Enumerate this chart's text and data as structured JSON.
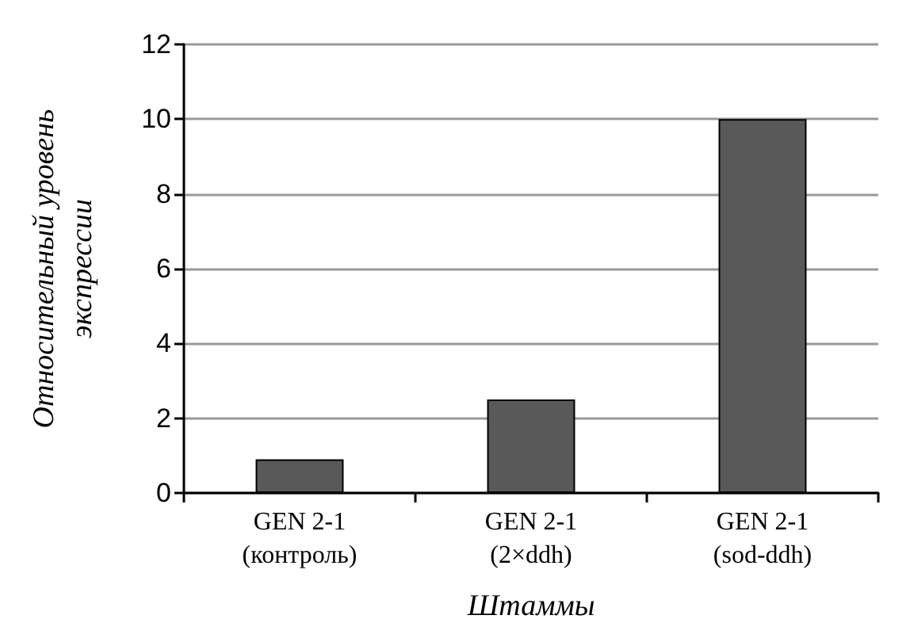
{
  "chart_data": {
    "type": "bar",
    "xlabel": "Штаммы",
    "ylabel": "Относительный уровень\nэкспрессии",
    "categories": [
      "GEN 2-1\n(контроль)",
      "GEN 2-1\n(2×ddh)",
      "GEN 2-1\n(sod-ddh)"
    ],
    "values": [
      0.9,
      2.5,
      10
    ],
    "color": "#595959",
    "ylim": [
      0,
      12
    ],
    "yticks": [
      0,
      2,
      4,
      6,
      8,
      10,
      12
    ],
    "grid": "y"
  }
}
